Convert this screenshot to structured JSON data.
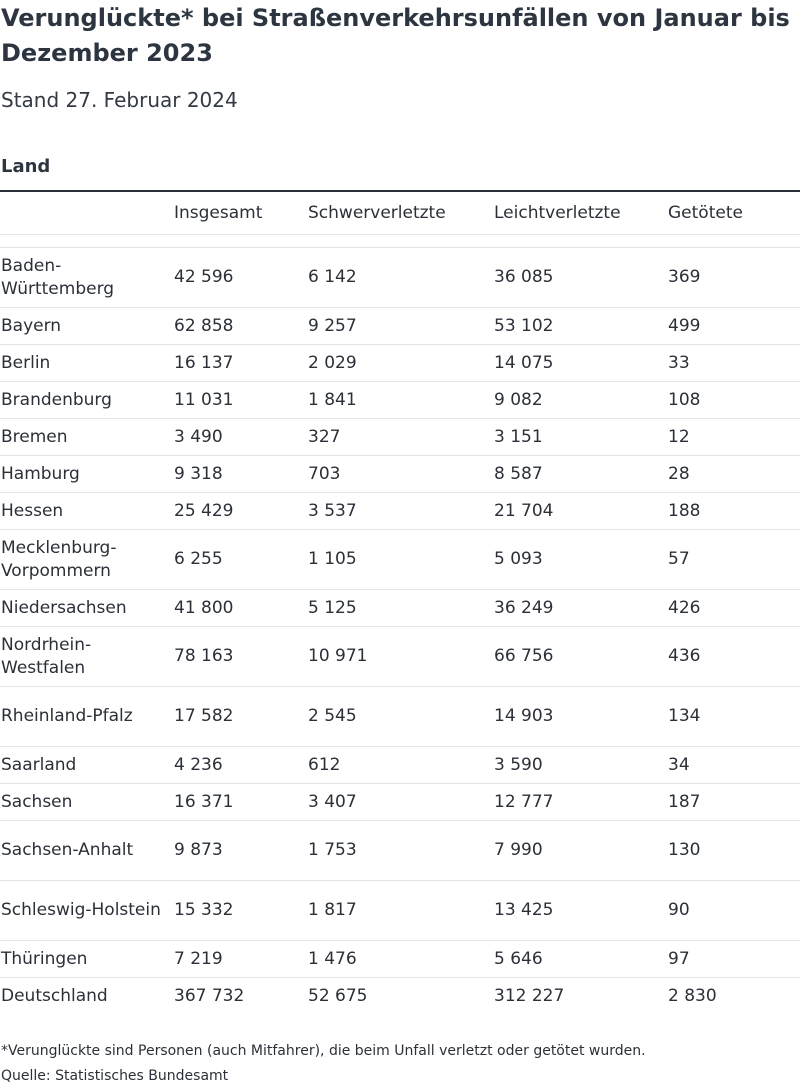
{
  "title": "Verunglückte* bei Straßenverkehrsunfällen von Januar bis Dezember 2023",
  "subtitle": "Stand 27. Februar 2024",
  "group_label": "Land",
  "columns": [
    "Insgesamt",
    "Schwerverletzte",
    "Leichtverletzte",
    "Getötete"
  ],
  "rows": [
    {
      "land": "Baden-Württemberg",
      "lines": 2,
      "insgesamt": "42 596",
      "schwer": "6 142",
      "leicht": "36 085",
      "getoetet": "369"
    },
    {
      "land": "Bayern",
      "lines": 1,
      "insgesamt": "62 858",
      "schwer": "9 257",
      "leicht": "53 102",
      "getoetet": "499"
    },
    {
      "land": "Berlin",
      "lines": 1,
      "insgesamt": "16 137",
      "schwer": "2 029",
      "leicht": "14 075",
      "getoetet": "33"
    },
    {
      "land": "Brandenburg",
      "lines": 1,
      "insgesamt": "11 031",
      "schwer": "1 841",
      "leicht": "9 082",
      "getoetet": "108"
    },
    {
      "land": "Bremen",
      "lines": 1,
      "insgesamt": "3 490",
      "schwer": "327",
      "leicht": "3 151",
      "getoetet": "12"
    },
    {
      "land": "Hamburg",
      "lines": 1,
      "insgesamt": "9 318",
      "schwer": "703",
      "leicht": "8 587",
      "getoetet": "28"
    },
    {
      "land": "Hessen",
      "lines": 1,
      "insgesamt": "25 429",
      "schwer": "3 537",
      "leicht": "21 704",
      "getoetet": "188"
    },
    {
      "land": "Mecklenburg-Vorpommern",
      "lines": 2,
      "insgesamt": "6 255",
      "schwer": "1 105",
      "leicht": "5 093",
      "getoetet": "57"
    },
    {
      "land": "Niedersachsen",
      "lines": 1,
      "insgesamt": "41 800",
      "schwer": "5 125",
      "leicht": "36 249",
      "getoetet": "426"
    },
    {
      "land": "Nordrhein-Westfalen",
      "lines": 2,
      "insgesamt": "78 163",
      "schwer": "10 971",
      "leicht": "66 756",
      "getoetet": "436"
    },
    {
      "land": "Rheinland-Pfalz",
      "lines": 2,
      "insgesamt": "17 582",
      "schwer": "2 545",
      "leicht": "14 903",
      "getoetet": "134"
    },
    {
      "land": "Saarland",
      "lines": 1,
      "insgesamt": "4 236",
      "schwer": "612",
      "leicht": "3 590",
      "getoetet": "34"
    },
    {
      "land": "Sachsen",
      "lines": 1,
      "insgesamt": "16 371",
      "schwer": "3 407",
      "leicht": "12 777",
      "getoetet": "187"
    },
    {
      "land": "Sachsen-Anhalt",
      "lines": 2,
      "insgesamt": "9 873",
      "schwer": "1 753",
      "leicht": "7 990",
      "getoetet": "130"
    },
    {
      "land": "Schleswig-Holstein",
      "lines": 2,
      "insgesamt": "15 332",
      "schwer": "1 817",
      "leicht": "13 425",
      "getoetet": "90"
    },
    {
      "land": "Thüringen",
      "lines": 1,
      "insgesamt": "7 219",
      "schwer": "1 476",
      "leicht": "5 646",
      "getoetet": "97"
    },
    {
      "land": "Deutschland",
      "lines": 1,
      "insgesamt": "367 732",
      "schwer": "52 675",
      "leicht": "312 227",
      "getoetet": "2 830"
    }
  ],
  "footnote": "*Verunglückte sind Personen (auch Mitfahrer), die beim Unfall verletzt oder getötet wurden.",
  "source": "Quelle: Statistisches Bundesamt"
}
